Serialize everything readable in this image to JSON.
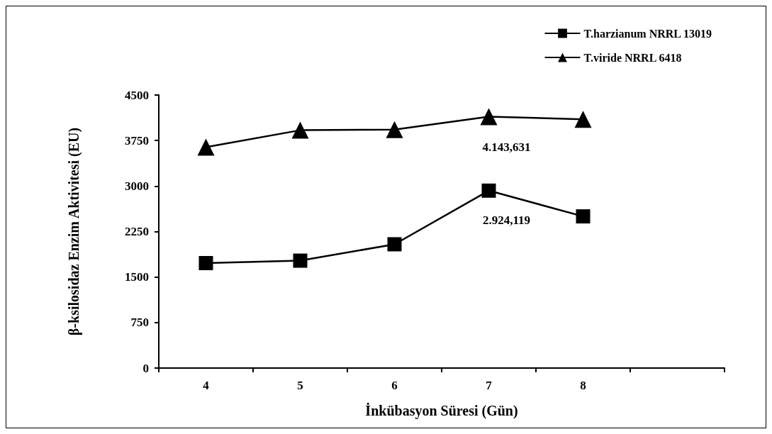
{
  "chart_data": {
    "type": "line",
    "xlabel": "İnkübasyon Süresi (Gün)",
    "ylabel": "β-ksilosidaz Enzim Aktivitesi (EU)",
    "categories": [
      "4",
      "5",
      "6",
      "7",
      "8",
      null
    ],
    "series": [
      {
        "name": "T.harzianum NRRL 13019",
        "color": "#000000",
        "marker": "square",
        "values": [
          1730,
          1770,
          2040,
          2924.119,
          2500,
          null
        ],
        "value_labels": [
          null,
          null,
          null,
          "2.924,119",
          null,
          null
        ]
      },
      {
        "name": "T.viride NRRL 6418",
        "color": "#000000",
        "marker": "triangle",
        "values": [
          3640,
          3920,
          3930,
          4143.631,
          4100,
          null
        ],
        "value_labels": [
          null,
          null,
          null,
          "4.143,631",
          null,
          null
        ]
      }
    ],
    "ylim": [
      0,
      4500
    ],
    "yticks": [
      0,
      750,
      1500,
      2250,
      3000,
      3750,
      4500
    ],
    "grid": false,
    "legend": "top right"
  }
}
